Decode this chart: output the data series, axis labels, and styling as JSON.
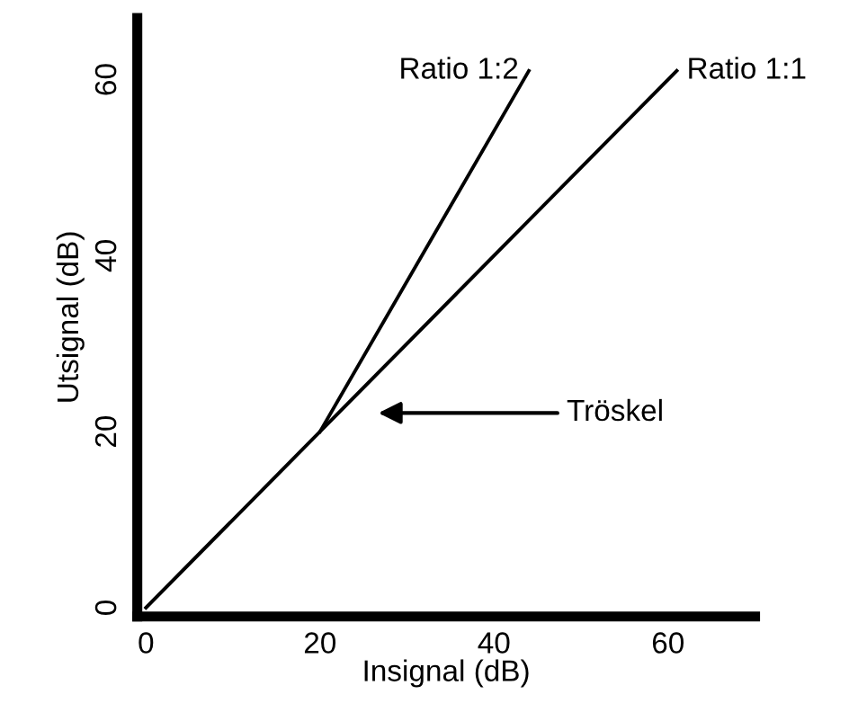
{
  "chart_data": {
    "type": "line",
    "xlabel": "Insignal (dB)",
    "ylabel": "Utsignal (dB)",
    "xlim": [
      -1,
      70
    ],
    "ylim": [
      -1,
      67
    ],
    "xticks": [
      0,
      20,
      40,
      60
    ],
    "yticks": [
      0,
      20,
      40,
      60
    ],
    "grid": false,
    "legend": false,
    "marker": "none",
    "line_style": "solid",
    "series": [
      {
        "name": "Ratio 1:2",
        "color": "#000000",
        "x": [
          20,
          44
        ],
        "values": [
          20,
          61
        ]
      },
      {
        "name": "Ratio 1:1",
        "color": "#000000",
        "x": [
          0,
          20,
          61
        ],
        "values": [
          0,
          20,
          61
        ]
      }
    ],
    "annotations": [
      "Tröskel"
    ]
  }
}
